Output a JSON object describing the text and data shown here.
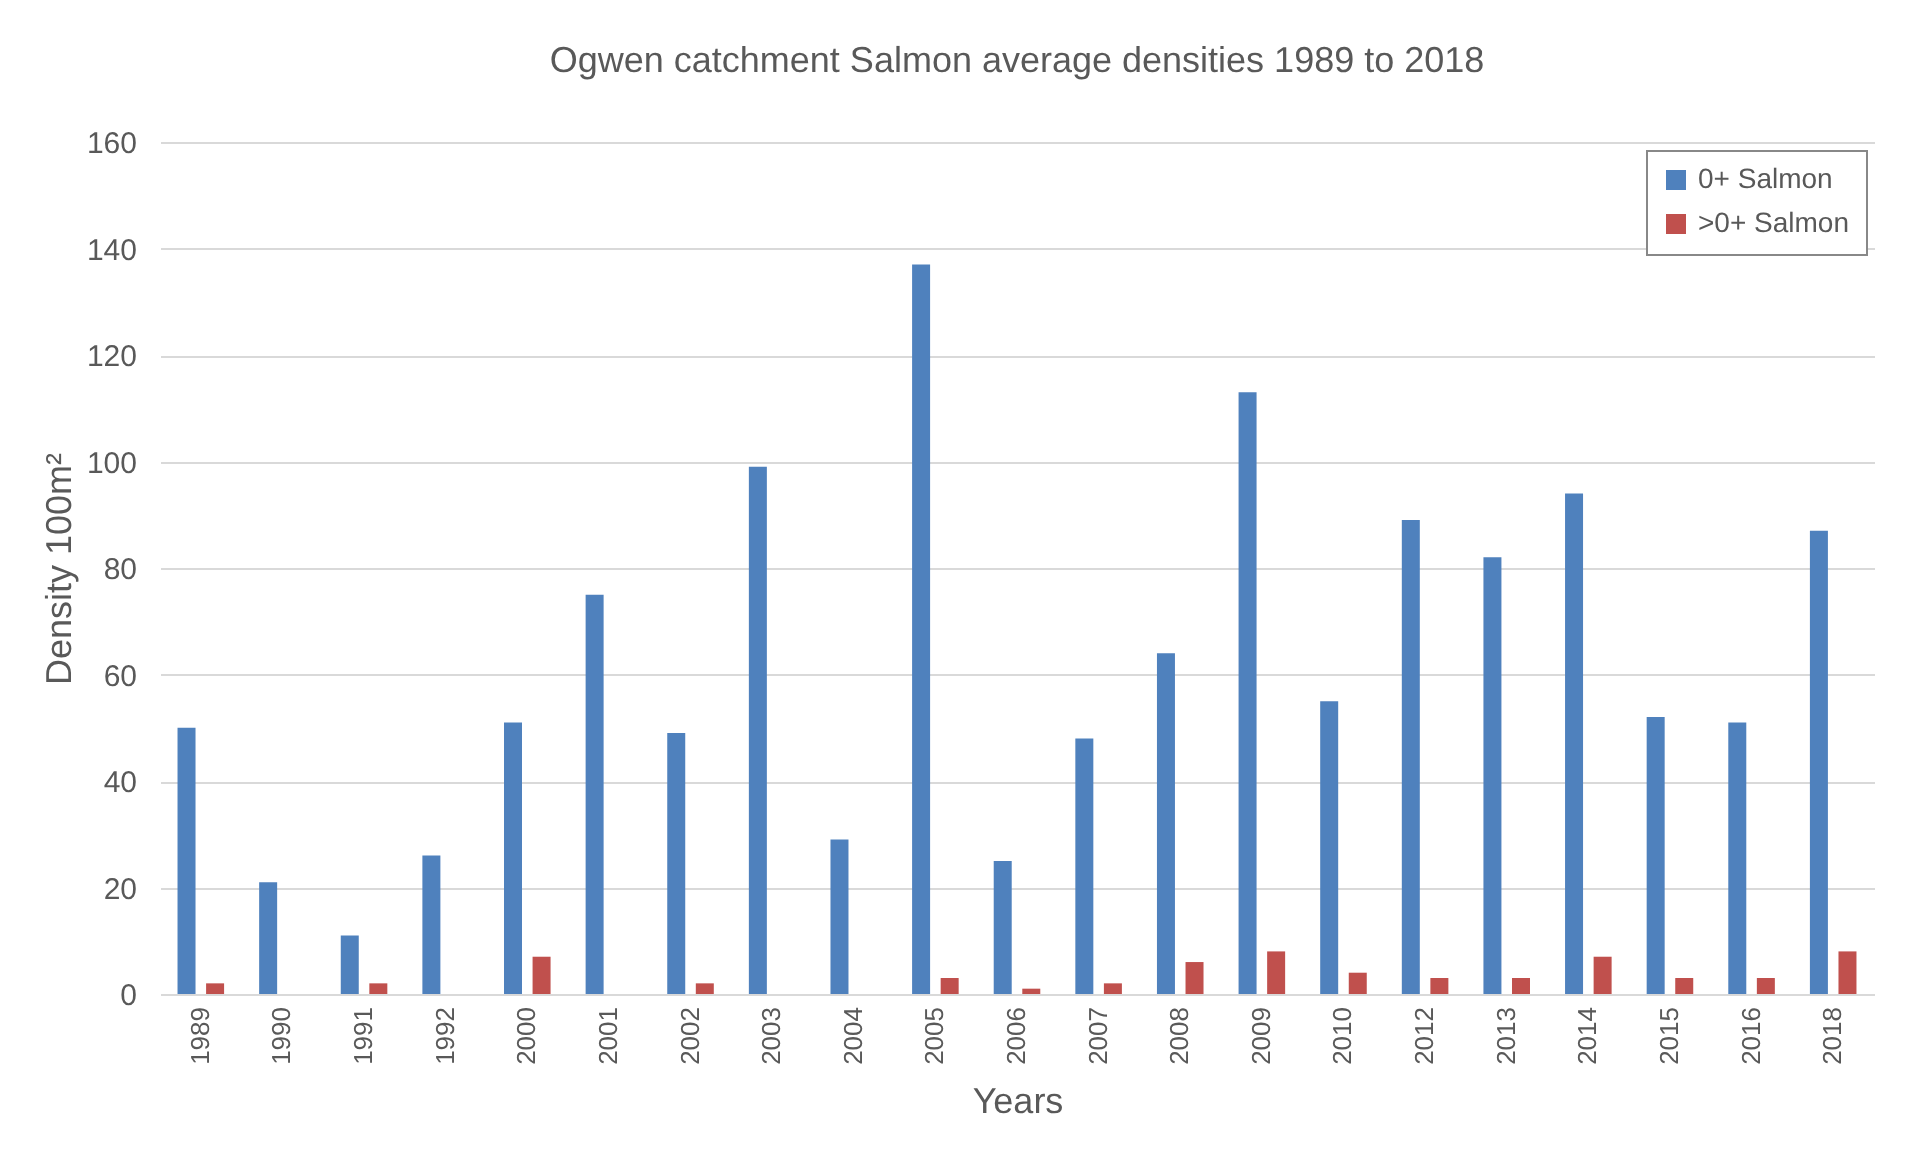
{
  "chart_data": {
    "type": "bar",
    "title": "Ogwen catchment Salmon average densities 1989 to 2018",
    "xlabel": "Years",
    "ylabel": "Density 100m²",
    "categories": [
      "1989",
      "1990",
      "1991",
      "1992",
      "2000",
      "2001",
      "2002",
      "2003",
      "2004",
      "2005",
      "2006",
      "2007",
      "2008",
      "2009",
      "2010",
      "2012",
      "2013",
      "2014",
      "2015",
      "2016",
      "2018"
    ],
    "series": [
      {
        "name": "0+ Salmon",
        "color": "#4f81bd",
        "values": [
          50,
          21,
          11,
          26,
          51,
          75,
          49,
          99,
          29,
          137,
          25,
          48,
          64,
          113,
          55,
          89,
          82,
          94,
          52,
          51,
          87
        ]
      },
      {
        "name": ">0+ Salmon",
        "color": "#c0504d",
        "values": [
          2,
          0,
          2,
          0,
          7,
          0,
          2,
          0,
          0,
          3,
          1,
          2,
          6,
          8,
          4,
          3,
          3,
          7,
          3,
          3,
          8
        ]
      }
    ],
    "ylim": [
      0,
      160
    ],
    "yticks": [
      0,
      20,
      40,
      60,
      80,
      100,
      120,
      140,
      160
    ],
    "grid": "y",
    "legend": "top right"
  }
}
